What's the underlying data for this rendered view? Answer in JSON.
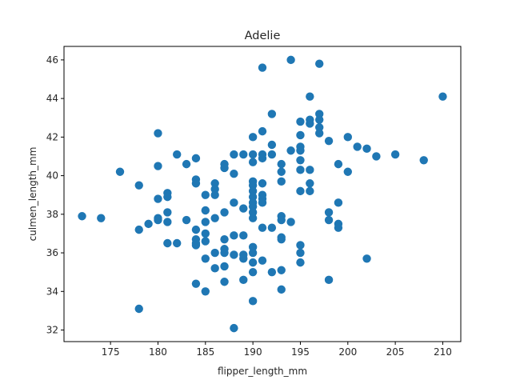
{
  "chart_data": {
    "type": "scatter",
    "title": "Adelie",
    "xlabel": "flipper_length_mm",
    "ylabel": "culmen_length_mm",
    "xlim": [
      170.1,
      211.9
    ],
    "ylim": [
      31.4,
      46.7
    ],
    "xticks": [
      175,
      180,
      185,
      190,
      195,
      200,
      205,
      210
    ],
    "yticks": [
      32,
      34,
      36,
      38,
      40,
      42,
      44,
      46
    ],
    "grid": false,
    "legend": "none",
    "marker_color": "#1f77b4",
    "points": [
      [
        172,
        37.9
      ],
      [
        174,
        37.8
      ],
      [
        176,
        40.2
      ],
      [
        178,
        39.5
      ],
      [
        178,
        37.2
      ],
      [
        178,
        33.1
      ],
      [
        179,
        37.5
      ],
      [
        180,
        42.2
      ],
      [
        180,
        40.5
      ],
      [
        180,
        38.8
      ],
      [
        180,
        37.8
      ],
      [
        180,
        37.7
      ],
      [
        181,
        39.1
      ],
      [
        181,
        38.9
      ],
      [
        181,
        38.1
      ],
      [
        181,
        37.6
      ],
      [
        181,
        36.5
      ],
      [
        182,
        41.1
      ],
      [
        182,
        36.5
      ],
      [
        183,
        40.6
      ],
      [
        183,
        37.7
      ],
      [
        184,
        40.9
      ],
      [
        184,
        39.8
      ],
      [
        184,
        39.6
      ],
      [
        184,
        37.2
      ],
      [
        184,
        36.7
      ],
      [
        184,
        36.5
      ],
      [
        184,
        36.4
      ],
      [
        184,
        34.4
      ],
      [
        185,
        39.0
      ],
      [
        185,
        38.2
      ],
      [
        185,
        37.6
      ],
      [
        185,
        37.0
      ],
      [
        185,
        36.6
      ],
      [
        185,
        35.7
      ],
      [
        185,
        34.0
      ],
      [
        186,
        39.6
      ],
      [
        186,
        39.3
      ],
      [
        186,
        39.0
      ],
      [
        186,
        37.8
      ],
      [
        186,
        36.0
      ],
      [
        186,
        35.2
      ],
      [
        187,
        40.6
      ],
      [
        187,
        40.4
      ],
      [
        187,
        38.1
      ],
      [
        187,
        36.7
      ],
      [
        187,
        36.2
      ],
      [
        187,
        36.0
      ],
      [
        187,
        35.3
      ],
      [
        187,
        34.5
      ],
      [
        188,
        41.1
      ],
      [
        188,
        40.1
      ],
      [
        188,
        38.6
      ],
      [
        188,
        36.9
      ],
      [
        188,
        35.9
      ],
      [
        188,
        32.1
      ],
      [
        189,
        41.1
      ],
      [
        189,
        38.3
      ],
      [
        189,
        36.9
      ],
      [
        189,
        35.9
      ],
      [
        189,
        35.7
      ],
      [
        189,
        34.6
      ],
      [
        190,
        42.0
      ],
      [
        190,
        41.1
      ],
      [
        190,
        40.7
      ],
      [
        190,
        39.7
      ],
      [
        190,
        39.5
      ],
      [
        190,
        39.2
      ],
      [
        190,
        38.9
      ],
      [
        190,
        38.6
      ],
      [
        190,
        38.4
      ],
      [
        190,
        38.1
      ],
      [
        190,
        37.8
      ],
      [
        190,
        36.3
      ],
      [
        190,
        36.0
      ],
      [
        190,
        35.5
      ],
      [
        190,
        35.0
      ],
      [
        190,
        33.5
      ],
      [
        191,
        45.6
      ],
      [
        191,
        42.3
      ],
      [
        191,
        41.1
      ],
      [
        191,
        40.9
      ],
      [
        191,
        39.6
      ],
      [
        191,
        39.0
      ],
      [
        191,
        38.8
      ],
      [
        191,
        38.6
      ],
      [
        191,
        37.3
      ],
      [
        191,
        35.6
      ],
      [
        192,
        43.2
      ],
      [
        192,
        41.6
      ],
      [
        192,
        41.1
      ],
      [
        192,
        37.3
      ],
      [
        192,
        35.0
      ],
      [
        193,
        40.6
      ],
      [
        193,
        40.2
      ],
      [
        193,
        39.7
      ],
      [
        193,
        37.9
      ],
      [
        193,
        37.7
      ],
      [
        193,
        36.8
      ],
      [
        193,
        36.7
      ],
      [
        193,
        35.1
      ],
      [
        193,
        34.1
      ],
      [
        194,
        46.0
      ],
      [
        194,
        41.3
      ],
      [
        194,
        37.6
      ],
      [
        195,
        42.8
      ],
      [
        195,
        42.1
      ],
      [
        195,
        41.5
      ],
      [
        195,
        41.3
      ],
      [
        195,
        40.8
      ],
      [
        195,
        40.3
      ],
      [
        195,
        39.2
      ],
      [
        195,
        36.4
      ],
      [
        195,
        36.0
      ],
      [
        195,
        35.5
      ],
      [
        196,
        44.1
      ],
      [
        196,
        42.9
      ],
      [
        196,
        42.7
      ],
      [
        196,
        40.3
      ],
      [
        196,
        39.6
      ],
      [
        196,
        39.2
      ],
      [
        197,
        45.8
      ],
      [
        197,
        43.2
      ],
      [
        197,
        42.9
      ],
      [
        197,
        42.5
      ],
      [
        197,
        42.2
      ],
      [
        198,
        41.8
      ],
      [
        198,
        38.1
      ],
      [
        198,
        37.7
      ],
      [
        198,
        34.6
      ],
      [
        199,
        40.6
      ],
      [
        199,
        38.6
      ],
      [
        199,
        37.5
      ],
      [
        199,
        37.3
      ],
      [
        200,
        42.0
      ],
      [
        200,
        40.2
      ],
      [
        201,
        41.5
      ],
      [
        202,
        41.4
      ],
      [
        202,
        35.7
      ],
      [
        203,
        41.0
      ],
      [
        205,
        41.1
      ],
      [
        208,
        40.8
      ],
      [
        210,
        44.1
      ]
    ]
  }
}
